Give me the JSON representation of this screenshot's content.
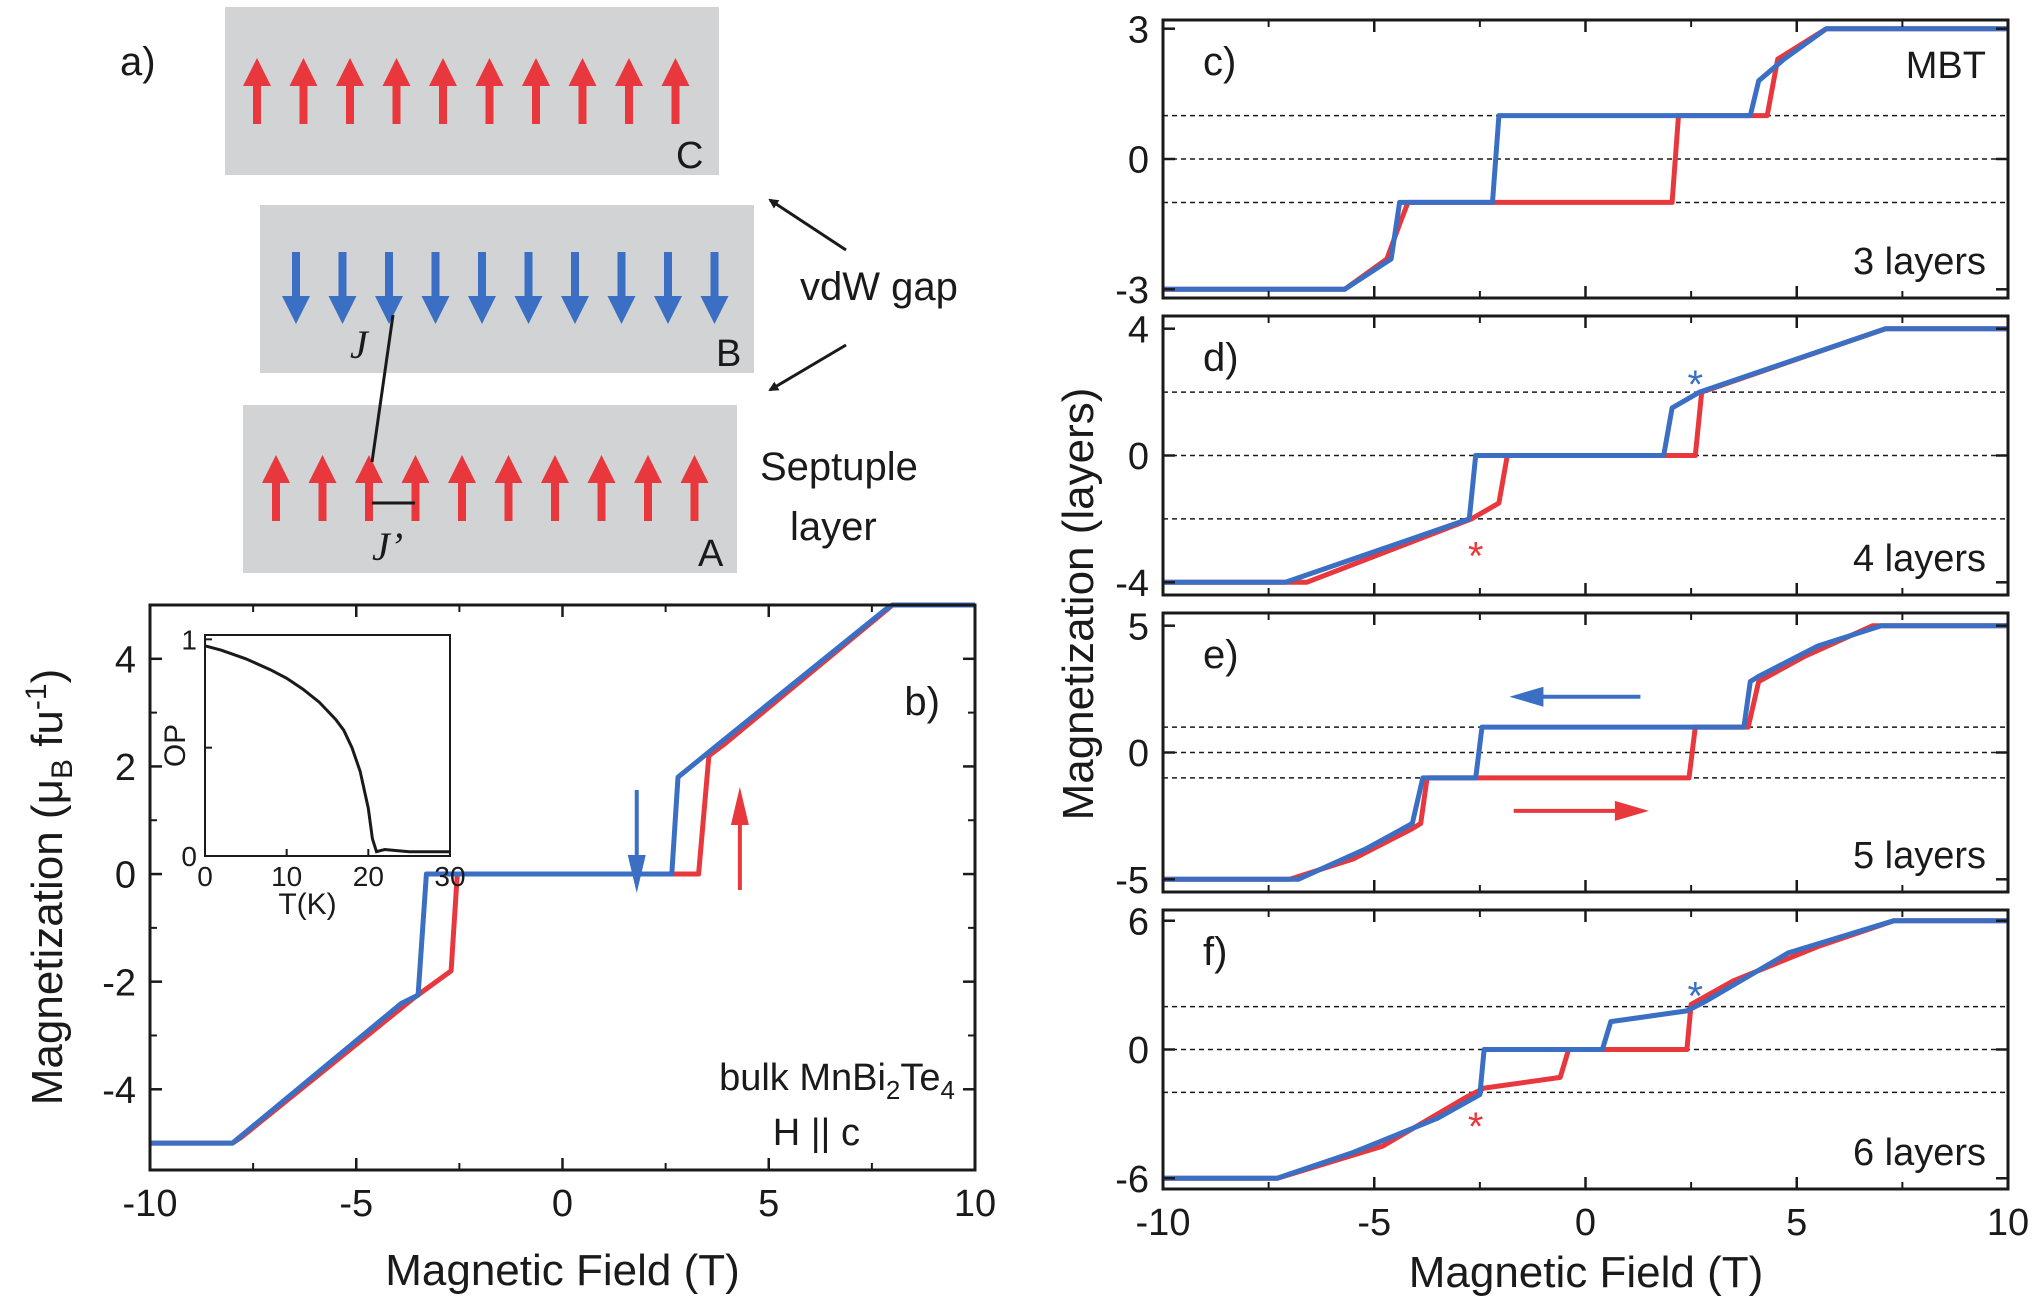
{
  "colors": {
    "red": "#e8383d",
    "blue": "#3a6fc4",
    "slab": "#d2d3d5",
    "black": "#1a1a1a"
  },
  "schematic": {
    "panel_label": "a)",
    "layer_labels": [
      "C",
      "B",
      "A"
    ],
    "vdw_label": "vdW gap",
    "septuple_label": "Septuple",
    "septuple_label2": "layer",
    "j_label": "J",
    "jprime_label": "J’"
  },
  "chart_data": [
    {
      "id": "b",
      "type": "line",
      "panel_label": "b)",
      "title": "",
      "xlabel": "Magnetic Field (T)",
      "ylabel_main": "Magnetization (μ",
      "ylabel_sub": "B",
      "ylabel_tail": " fu",
      "ylabel_sup": "-1",
      "ylabel_close": ")",
      "xlim": [
        -10,
        10
      ],
      "ylim": [
        -5.5,
        5
      ],
      "xticks": [
        -10,
        -5,
        0,
        5,
        10
      ],
      "yticks": [
        -4,
        -2,
        0,
        2,
        4
      ],
      "annotation": {
        "line1_pre": "bulk MnBi",
        "line1_sub1": "2",
        "line1_mid": "Te",
        "line1_sub2": "4",
        "line2": "H || c"
      },
      "series": [
        {
          "name": "up sweep",
          "color": "red",
          "x": [
            -10,
            -8,
            -7.8,
            -3.6,
            -2.7,
            -2.55,
            3.3,
            3.55,
            3.9,
            8,
            10
          ],
          "y": [
            -5,
            -5,
            -4.9,
            -2.3,
            -1.8,
            0,
            0,
            2.2,
            2.4,
            5,
            5
          ]
        },
        {
          "name": "down sweep",
          "color": "blue",
          "x": [
            10,
            8,
            7.8,
            3.6,
            2.8,
            2.65,
            -3.3,
            -3.5,
            -3.9,
            -8,
            -10
          ],
          "y": [
            5,
            5,
            4.9,
            2.3,
            1.8,
            0,
            0,
            -2.25,
            -2.4,
            -5,
            -5
          ]
        }
      ],
      "arrows": [
        {
          "color": "blue",
          "x": 1.8,
          "direction": "down"
        },
        {
          "color": "red",
          "x": 4.3,
          "direction": "up"
        }
      ],
      "inset": {
        "type": "line",
        "xlabel": "T(K)",
        "ylabel": "OP",
        "xlim": [
          0,
          30
        ],
        "ylim": [
          0,
          1.02
        ],
        "xticks": [
          0,
          10,
          20,
          30
        ],
        "yticks": [
          0,
          1
        ],
        "series": [
          {
            "name": "OP",
            "x": [
              0,
              2,
              5,
              8,
              10,
              12,
              14,
              16,
              17,
              18,
              19,
              20,
              20.5,
              21,
              22,
              25,
              28,
              30
            ],
            "y": [
              0.97,
              0.95,
              0.91,
              0.86,
              0.82,
              0.77,
              0.71,
              0.63,
              0.58,
              0.5,
              0.39,
              0.22,
              0.08,
              0.02,
              0.03,
              0.02,
              0.02,
              0.02
            ]
          }
        ]
      }
    },
    {
      "id": "c",
      "type": "line",
      "panel_label": "c)",
      "extra_label": "MBT",
      "layers_label": "3 layers",
      "xlim": [
        -10,
        10
      ],
      "ylim": [
        -3.2,
        3.2
      ],
      "yticks": [
        -3,
        0,
        3
      ],
      "dashed": [
        -1,
        0,
        1
      ],
      "series": [
        {
          "name": "up",
          "color": "red",
          "x": [
            -10,
            -5.7,
            -4.7,
            -4.4,
            -4.2,
            2.05,
            2.2,
            4.3,
            4.55,
            5.7,
            10
          ],
          "y": [
            -3,
            -3,
            -2.3,
            -1.5,
            -1,
            -1,
            1,
            1,
            2.3,
            3,
            3
          ]
        },
        {
          "name": "down",
          "color": "blue",
          "x": [
            10,
            5.7,
            4.7,
            4.1,
            3.9,
            -2.05,
            -2.2,
            -4.4,
            -4.6,
            -5.7,
            -10
          ],
          "y": [
            3,
            3,
            2.3,
            1.8,
            1,
            1,
            -1,
            -1,
            -2.3,
            -3,
            -3
          ]
        }
      ],
      "stars": []
    },
    {
      "id": "d",
      "type": "line",
      "panel_label": "d)",
      "layers_label": "4 layers",
      "xlim": [
        -10,
        10
      ],
      "ylim": [
        -4.4,
        4.4
      ],
      "yticks": [
        -4,
        0,
        4
      ],
      "dashed": [
        -2,
        0,
        2
      ],
      "series": [
        {
          "name": "up",
          "color": "red",
          "x": [
            -10,
            -6.6,
            -2.7,
            -2.05,
            -1.85,
            2.6,
            2.75,
            7.1,
            10
          ],
          "y": [
            -4,
            -4,
            -2,
            -1.5,
            0,
            0,
            2,
            4,
            4
          ]
        },
        {
          "name": "down",
          "color": "blue",
          "x": [
            10,
            7.1,
            2.7,
            2.05,
            1.85,
            -2.6,
            -2.75,
            -7.1,
            -10
          ],
          "y": [
            4,
            4,
            2,
            1.5,
            0,
            0,
            -2,
            -4,
            -4
          ]
        }
      ],
      "stars": [
        {
          "color": "blue",
          "x": 2.6,
          "y": 2.5
        },
        {
          "color": "red",
          "x": -2.6,
          "y": -2.9
        }
      ]
    },
    {
      "id": "e",
      "type": "line",
      "panel_label": "e)",
      "layers_label": "5 layers",
      "xlim": [
        -10,
        10
      ],
      "ylim": [
        -5.5,
        5.5
      ],
      "yticks": [
        -5,
        0,
        5
      ],
      "dashed": [
        -1,
        0,
        1
      ],
      "series": [
        {
          "name": "up",
          "color": "red",
          "x": [
            -10,
            -7,
            -5.5,
            -4.1,
            -3.9,
            -3.75,
            2.45,
            2.6,
            3.85,
            4.1,
            5.2,
            6.8,
            10
          ],
          "y": [
            -5,
            -5,
            -4.2,
            -3,
            -2.8,
            -1,
            -1,
            1,
            1,
            2.8,
            3.8,
            5,
            5
          ]
        },
        {
          "name": "down",
          "color": "blue",
          "x": [
            10,
            7,
            5.5,
            4.1,
            3.9,
            3.75,
            -2.45,
            -2.6,
            -3.85,
            -4.1,
            -5.2,
            -6.8,
            -10
          ],
          "y": [
            5,
            5,
            4.2,
            3,
            2.8,
            1,
            1,
            -1,
            -1,
            -2.8,
            -3.8,
            -5,
            -5
          ]
        }
      ],
      "arrows": [
        {
          "color": "blue",
          "x1": 1.3,
          "x2": -1.8,
          "y": 2.2
        },
        {
          "color": "red",
          "x1": -1.7,
          "x2": 1.5,
          "y": -2.3
        }
      ],
      "stars": []
    },
    {
      "id": "f",
      "type": "line",
      "panel_label": "f)",
      "layers_label": "6 layers",
      "xlim": [
        -10,
        10
      ],
      "ylim": [
        -6.5,
        6.5
      ],
      "yticks": [
        -6,
        0,
        6
      ],
      "dashed": [
        -2,
        0,
        2
      ],
      "series": [
        {
          "name": "up",
          "color": "red",
          "x": [
            -10,
            -7.3,
            -4.8,
            -2.8,
            -2.4,
            -0.6,
            -0.4,
            2.4,
            2.5,
            3.5,
            5.5,
            7.3,
            10
          ],
          "y": [
            -6,
            -6,
            -4.5,
            -2.2,
            -1.8,
            -1.3,
            0,
            0,
            2.1,
            3.2,
            4.8,
            6,
            6
          ]
        },
        {
          "name": "down",
          "color": "blue",
          "x": [
            10,
            7.3,
            4.8,
            2.8,
            2.4,
            0.6,
            0.4,
            -2.4,
            -2.5,
            -3.5,
            -5.5,
            -7.3,
            -10
          ],
          "y": [
            6,
            6,
            4.5,
            2.2,
            1.8,
            1.3,
            0,
            0,
            -2.1,
            -3.2,
            -4.8,
            -6,
            -6
          ]
        }
      ],
      "stars": [
        {
          "color": "blue",
          "x": 2.6,
          "y": 2.9
        },
        {
          "color": "red",
          "x": -2.6,
          "y": -3.2
        }
      ]
    }
  ],
  "right_panels": {
    "xlabel": "Magnetic Field (T)",
    "ylabel": "Magnetization (layers)",
    "xticks": [
      -10,
      -5,
      0,
      5,
      10
    ]
  }
}
